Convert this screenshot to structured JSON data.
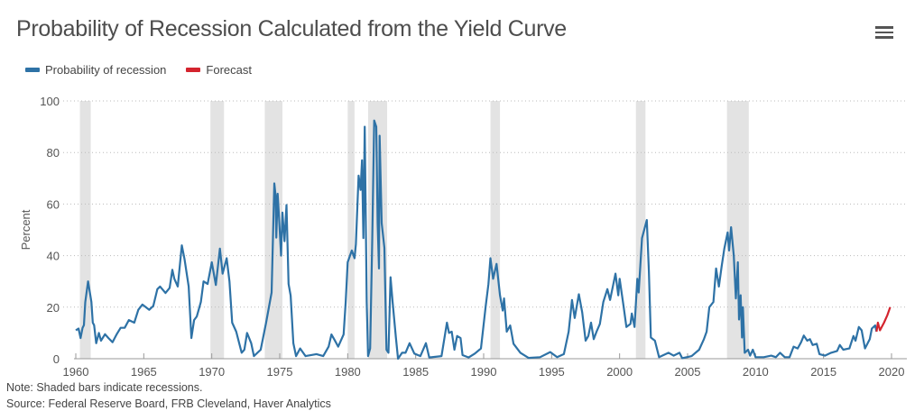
{
  "header": {
    "title": "Probability of Recession Calculated from the Yield Curve",
    "menu_icon": "hamburger-menu-icon"
  },
  "notes": {
    "note": "Note: Shaded bars indicate recessions.",
    "source": "Source: Federal Reserve Board, FRB Cleveland, Haver Analytics"
  },
  "colors": {
    "probability": "#2e72a6",
    "forecast": "#d4242e",
    "recession": "#e3e3e3"
  },
  "chart_data": {
    "type": "line",
    "title": "Probability of Recession Calculated from the Yield Curve",
    "xlabel": "",
    "ylabel": "Percent",
    "xlim": [
      1960,
      2020
    ],
    "ylim": [
      0,
      100
    ],
    "x_ticks": [
      "1960",
      "1965",
      "1970",
      "1975",
      "1980",
      "1985",
      "1990",
      "1995",
      "2000",
      "2005",
      "2010",
      "2015",
      "2020"
    ],
    "y_ticks": [
      "0",
      "20",
      "40",
      "60",
      "80",
      "100"
    ],
    "grid": "horizontal dotted",
    "legend_placement": "top-left",
    "recessions": [
      [
        1960.3,
        1961.1
      ],
      [
        1969.9,
        1970.9
      ],
      [
        1973.9,
        1975.2
      ],
      [
        1980.0,
        1980.5
      ],
      [
        1981.5,
        1982.9
      ],
      [
        1990.5,
        1991.2
      ],
      [
        2001.2,
        2001.9
      ],
      [
        2007.9,
        2009.5
      ]
    ],
    "series": [
      {
        "name": "Probability of recession",
        "color": "#2e72a6",
        "points": [
          [
            1960.0,
            11
          ],
          [
            1960.2,
            11.7
          ],
          [
            1960.35,
            8
          ],
          [
            1960.5,
            12
          ],
          [
            1960.6,
            13
          ],
          [
            1960.7,
            22
          ],
          [
            1960.9,
            30
          ],
          [
            1961.15,
            22
          ],
          [
            1961.25,
            14
          ],
          [
            1961.35,
            13
          ],
          [
            1961.5,
            6
          ],
          [
            1961.7,
            10
          ],
          [
            1961.85,
            7
          ],
          [
            1962.15,
            9.5
          ],
          [
            1962.4,
            8
          ],
          [
            1962.7,
            6.4
          ],
          [
            1963.0,
            9.4
          ],
          [
            1963.3,
            12
          ],
          [
            1963.6,
            12
          ],
          [
            1963.9,
            15
          ],
          [
            1964.3,
            14
          ],
          [
            1964.6,
            19
          ],
          [
            1964.9,
            21
          ],
          [
            1965.4,
            19
          ],
          [
            1965.7,
            20.5
          ],
          [
            1966.0,
            27
          ],
          [
            1966.2,
            28
          ],
          [
            1966.6,
            25.5
          ],
          [
            1966.9,
            27.5
          ],
          [
            1967.1,
            34.5
          ],
          [
            1967.25,
            31
          ],
          [
            1967.5,
            28
          ],
          [
            1967.8,
            44
          ],
          [
            1968.0,
            38.6
          ],
          [
            1968.3,
            28
          ],
          [
            1968.5,
            8
          ],
          [
            1968.7,
            15
          ],
          [
            1968.9,
            16.4
          ],
          [
            1969.2,
            22
          ],
          [
            1969.4,
            30
          ],
          [
            1969.7,
            29
          ],
          [
            1970.0,
            37.4
          ],
          [
            1970.3,
            28.6
          ],
          [
            1970.6,
            42.7
          ],
          [
            1970.8,
            33
          ],
          [
            1971.1,
            39
          ],
          [
            1971.3,
            30
          ],
          [
            1971.5,
            14
          ],
          [
            1971.8,
            10.5
          ],
          [
            1972.2,
            2.3
          ],
          [
            1972.4,
            3.5
          ],
          [
            1972.6,
            10
          ],
          [
            1972.9,
            6
          ],
          [
            1973.1,
            1
          ],
          [
            1973.6,
            3.5
          ],
          [
            1974.0,
            14
          ],
          [
            1974.4,
            25.7
          ],
          [
            1974.6,
            68
          ],
          [
            1974.7,
            63
          ],
          [
            1974.75,
            47
          ],
          [
            1974.85,
            64
          ],
          [
            1974.95,
            55
          ],
          [
            1975.1,
            40
          ],
          [
            1975.2,
            56.7
          ],
          [
            1975.35,
            45.6
          ],
          [
            1975.5,
            59.6
          ],
          [
            1975.65,
            29
          ],
          [
            1975.8,
            24.5
          ],
          [
            1976.0,
            6
          ],
          [
            1976.2,
            1
          ],
          [
            1976.5,
            4
          ],
          [
            1976.9,
            1
          ],
          [
            1977.7,
            1.8
          ],
          [
            1978.2,
            1
          ],
          [
            1978.6,
            4.7
          ],
          [
            1978.8,
            9.4
          ],
          [
            1979.0,
            7.6
          ],
          [
            1979.3,
            4.7
          ],
          [
            1979.7,
            9.4
          ],
          [
            1979.85,
            22
          ],
          [
            1980.0,
            37.4
          ],
          [
            1980.3,
            42
          ],
          [
            1980.5,
            39
          ],
          [
            1980.6,
            44.4
          ],
          [
            1980.8,
            71
          ],
          [
            1980.95,
            65.5
          ],
          [
            1981.05,
            77
          ],
          [
            1981.15,
            46.8
          ],
          [
            1981.25,
            90
          ],
          [
            1981.4,
            22
          ],
          [
            1981.5,
            1
          ],
          [
            1981.65,
            4
          ],
          [
            1981.8,
            45.6
          ],
          [
            1981.95,
            92.4
          ],
          [
            1982.1,
            90
          ],
          [
            1982.2,
            52.6
          ],
          [
            1982.3,
            35
          ],
          [
            1982.35,
            86.5
          ],
          [
            1982.5,
            52.6
          ],
          [
            1982.7,
            43
          ],
          [
            1982.85,
            3.5
          ],
          [
            1983.0,
            2.3
          ],
          [
            1983.15,
            31.6
          ],
          [
            1983.3,
            22
          ],
          [
            1983.55,
            8
          ],
          [
            1983.7,
            0
          ],
          [
            1984.0,
            2.3
          ],
          [
            1984.25,
            2.3
          ],
          [
            1984.55,
            6
          ],
          [
            1984.9,
            2
          ],
          [
            1985.35,
            1
          ],
          [
            1985.75,
            6
          ],
          [
            1986.0,
            0.5
          ],
          [
            1986.9,
            1
          ],
          [
            1987.3,
            14
          ],
          [
            1987.45,
            10
          ],
          [
            1987.65,
            10.5
          ],
          [
            1987.85,
            3.5
          ],
          [
            1988.05,
            8.8
          ],
          [
            1988.3,
            8
          ],
          [
            1988.45,
            1.4
          ],
          [
            1988.9,
            0.5
          ],
          [
            1989.35,
            2
          ],
          [
            1989.8,
            4
          ],
          [
            1990.15,
            20.5
          ],
          [
            1990.35,
            29
          ],
          [
            1990.5,
            39
          ],
          [
            1990.7,
            31
          ],
          [
            1990.95,
            36.8
          ],
          [
            1991.2,
            24.6
          ],
          [
            1991.4,
            18.7
          ],
          [
            1991.5,
            23.4
          ],
          [
            1991.7,
            10.5
          ],
          [
            1991.95,
            12.9
          ],
          [
            1992.2,
            5.8
          ],
          [
            1992.7,
            2.3
          ],
          [
            1993.3,
            0.3
          ],
          [
            1994.15,
            0.6
          ],
          [
            1994.9,
            2.6
          ],
          [
            1995.4,
            0.6
          ],
          [
            1995.9,
            1.8
          ],
          [
            1996.25,
            10.5
          ],
          [
            1996.5,
            22.8
          ],
          [
            1996.7,
            15.8
          ],
          [
            1997.0,
            25
          ],
          [
            1997.25,
            18
          ],
          [
            1997.5,
            7
          ],
          [
            1997.7,
            8.8
          ],
          [
            1997.9,
            14
          ],
          [
            1998.1,
            7.6
          ],
          [
            1998.3,
            10.5
          ],
          [
            1998.55,
            13.5
          ],
          [
            1998.8,
            22
          ],
          [
            1999.1,
            27
          ],
          [
            1999.3,
            22.8
          ],
          [
            1999.7,
            33
          ],
          [
            1999.9,
            24.6
          ],
          [
            2000.0,
            31
          ],
          [
            2000.3,
            20
          ],
          [
            2000.5,
            12.3
          ],
          [
            2000.8,
            13.5
          ],
          [
            2000.9,
            17.5
          ],
          [
            2001.1,
            12.3
          ],
          [
            2001.3,
            31
          ],
          [
            2001.4,
            25.7
          ],
          [
            2001.65,
            46.8
          ],
          [
            2002.0,
            53.8
          ],
          [
            2002.15,
            34
          ],
          [
            2002.3,
            8.2
          ],
          [
            2002.6,
            7
          ],
          [
            2002.9,
            0.6
          ],
          [
            2003.6,
            2.3
          ],
          [
            2003.97,
            1.2
          ],
          [
            2004.4,
            2.3
          ],
          [
            2004.6,
            0.2
          ],
          [
            2005.3,
            1
          ],
          [
            2005.85,
            3.5
          ],
          [
            2006.2,
            7.6
          ],
          [
            2006.4,
            10.5
          ],
          [
            2006.6,
            20
          ],
          [
            2006.9,
            22
          ],
          [
            2007.1,
            35
          ],
          [
            2007.3,
            28
          ],
          [
            2007.5,
            35.7
          ],
          [
            2007.7,
            42.7
          ],
          [
            2007.95,
            49
          ],
          [
            2008.05,
            42
          ],
          [
            2008.2,
            51
          ],
          [
            2008.4,
            40
          ],
          [
            2008.55,
            23.4
          ],
          [
            2008.7,
            37.4
          ],
          [
            2008.78,
            15.2
          ],
          [
            2008.9,
            24.6
          ],
          [
            2009.0,
            8.2
          ],
          [
            2009.07,
            20
          ],
          [
            2009.2,
            2.3
          ],
          [
            2009.45,
            3.5
          ],
          [
            2009.6,
            1.2
          ],
          [
            2009.8,
            3.5
          ],
          [
            2010.0,
            0.6
          ],
          [
            2010.6,
            0.6
          ],
          [
            2011.15,
            1.2
          ],
          [
            2011.5,
            0.6
          ],
          [
            2011.8,
            2.3
          ],
          [
            2012.15,
            0.6
          ],
          [
            2012.5,
            0.6
          ],
          [
            2012.8,
            4.7
          ],
          [
            2013.1,
            4
          ],
          [
            2013.35,
            6.4
          ],
          [
            2013.55,
            9
          ],
          [
            2013.8,
            7
          ],
          [
            2014.0,
            7.6
          ],
          [
            2014.2,
            5.3
          ],
          [
            2014.5,
            5.8
          ],
          [
            2014.7,
            1.8
          ],
          [
            2015.1,
            1.2
          ],
          [
            2015.55,
            2.3
          ],
          [
            2016.0,
            3
          ],
          [
            2016.2,
            5.3
          ],
          [
            2016.45,
            3.5
          ],
          [
            2016.9,
            4
          ],
          [
            2017.2,
            8.8
          ],
          [
            2017.35,
            7
          ],
          [
            2017.6,
            12.3
          ],
          [
            2017.8,
            11
          ],
          [
            2018.05,
            4
          ],
          [
            2018.4,
            7.6
          ],
          [
            2018.55,
            11.7
          ],
          [
            2018.8,
            12.9
          ],
          [
            2018.9,
            10.5
          ]
        ]
      },
      {
        "name": "Forecast",
        "color": "#d4242e",
        "points": [
          [
            2018.9,
            10.5
          ],
          [
            2019.0,
            14
          ],
          [
            2019.15,
            11
          ],
          [
            2019.45,
            14
          ],
          [
            2019.7,
            17
          ],
          [
            2019.9,
            20
          ]
        ]
      }
    ]
  }
}
